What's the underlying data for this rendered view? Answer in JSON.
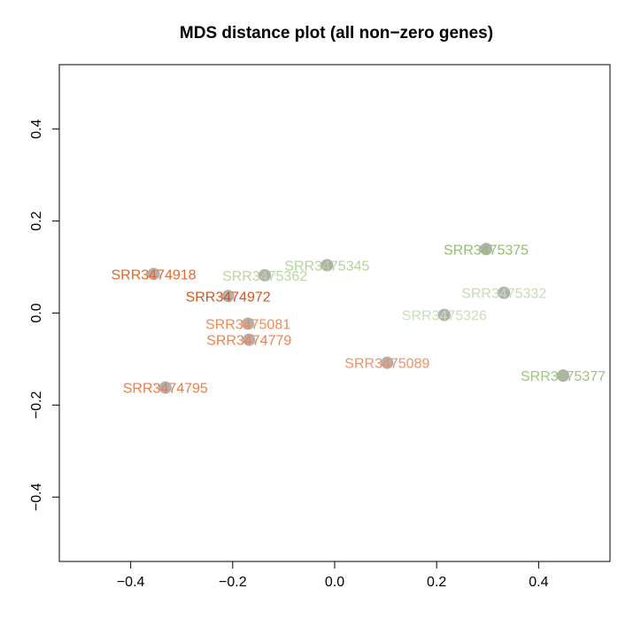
{
  "chart_data": {
    "type": "scatter",
    "title": "MDS distance plot (all non−zero genes)",
    "xlabel": "",
    "ylabel": "",
    "xlim": [
      -0.54,
      0.54
    ],
    "ylim": [
      -0.54,
      0.54
    ],
    "x_ticks": [
      -0.4,
      -0.2,
      0.0,
      0.2,
      0.4
    ],
    "x_tick_labels": [
      "−0.4",
      "−0.2",
      "0.0",
      "0.2",
      "0.4"
    ],
    "y_ticks": [
      -0.4,
      -0.2,
      0.0,
      0.2,
      0.4
    ],
    "y_tick_labels": [
      "−0.4",
      "−0.2",
      "0.0",
      "0.2",
      "0.4"
    ],
    "grid": false,
    "point_color": "#b0b0b0",
    "points": [
      {
        "label": "SRR3474918",
        "x": -0.355,
        "y": 0.085,
        "color": "#e2692f"
      },
      {
        "label": "SRR3474972",
        "x": -0.209,
        "y": 0.037,
        "color": "#d4561f"
      },
      {
        "label": "SRR3475081",
        "x": -0.17,
        "y": -0.023,
        "color": "#f08a58"
      },
      {
        "label": "SRR3474779",
        "x": -0.168,
        "y": -0.058,
        "color": "#ee8050"
      },
      {
        "label": "SRR3474795",
        "x": -0.332,
        "y": -0.162,
        "color": "#f07a45"
      },
      {
        "label": "SRR3475362",
        "x": -0.137,
        "y": 0.082,
        "color": "#b9d6a0"
      },
      {
        "label": "SRR3475345",
        "x": -0.015,
        "y": 0.104,
        "color": "#b4d49a"
      },
      {
        "label": "SRR3475375",
        "x": 0.297,
        "y": 0.139,
        "color": "#8fc06a"
      },
      {
        "label": "SRR3475332",
        "x": 0.332,
        "y": 0.044,
        "color": "#c4ddb0"
      },
      {
        "label": "SRR3475326",
        "x": 0.215,
        "y": -0.004,
        "color": "#c8e0b5"
      },
      {
        "label": "SRR3475089",
        "x": 0.103,
        "y": -0.108,
        "color": "#f0906a"
      },
      {
        "label": "SRR3475377",
        "x": 0.448,
        "y": -0.136,
        "color": "#9cc77b"
      }
    ]
  }
}
